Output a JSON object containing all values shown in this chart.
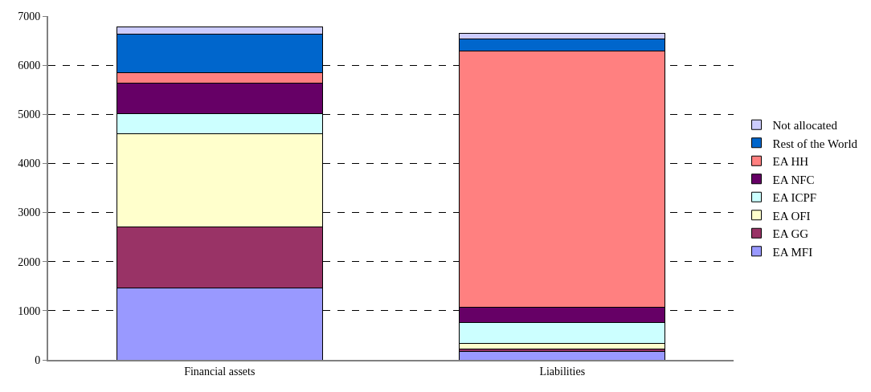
{
  "chart_data": {
    "type": "bar",
    "stacked": true,
    "categories": [
      "Financial assets",
      "Liabilities"
    ],
    "series": [
      {
        "name": "EA MFI",
        "color": "#9999ff",
        "values": [
          1460,
          170
        ]
      },
      {
        "name": "EA GG",
        "color": "#993366",
        "values": [
          1240,
          50
        ]
      },
      {
        "name": "EA OFI",
        "color": "#ffffcc",
        "values": [
          1900,
          115
        ]
      },
      {
        "name": "EA ICPF",
        "color": "#ccffff",
        "values": [
          420,
          420
        ]
      },
      {
        "name": "EA NFC",
        "color": "#660066",
        "values": [
          620,
          310
        ]
      },
      {
        "name": "EA HH",
        "color": "#ff8080",
        "values": [
          200,
          5225
        ]
      },
      {
        "name": "Rest of the World",
        "color": "#0066cc",
        "values": [
          800,
          245
        ]
      },
      {
        "name": "Not allocated",
        "color": "#ccccff",
        "values": [
          140,
          110
        ]
      }
    ],
    "ylim": [
      0,
      7000
    ],
    "yticks": [
      0,
      1000,
      2000,
      3000,
      4000,
      5000,
      6000,
      7000
    ],
    "grid": "y",
    "legend": "right"
  }
}
